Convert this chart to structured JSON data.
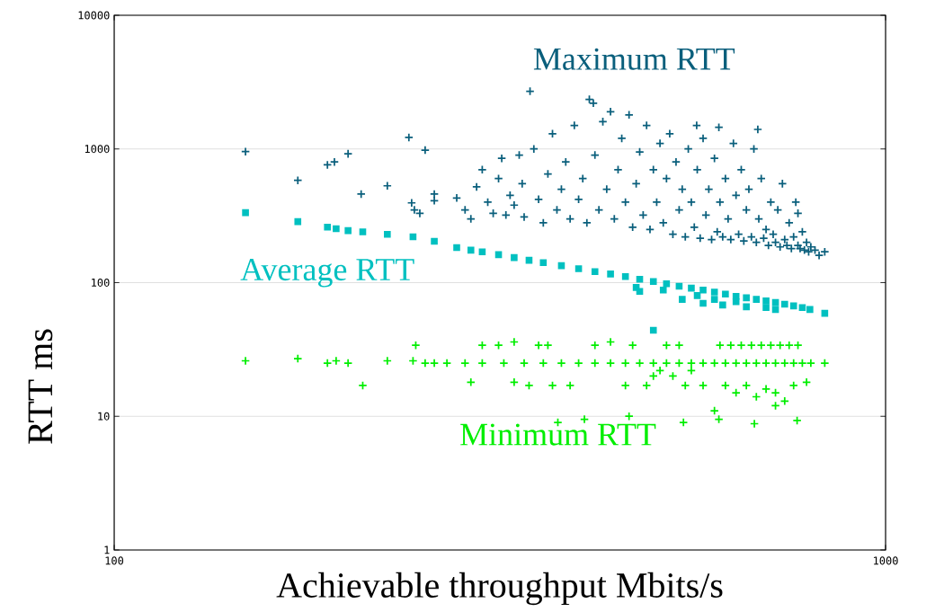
{
  "chart_data": {
    "type": "scatter",
    "xlabel": "Achievable throughput Mbits/s",
    "ylabel": "RTT ms",
    "log": "xy",
    "grid": "y",
    "xlim": [
      100,
      1000
    ],
    "ylim": [
      1,
      10000
    ],
    "xticks": [
      100,
      1000
    ],
    "yticks": [
      1,
      10,
      100,
      1000,
      10000
    ],
    "series": [
      {
        "name": "Maximum RTT",
        "color": "#0a5f7c",
        "marker": "cross",
        "x": [
          148,
          173,
          189,
          193,
          201,
          209,
          226,
          241,
          253,
          243,
          245,
          249,
          260,
          260,
          278,
          285,
          290,
          295,
          300,
          305,
          310,
          315,
          318,
          322,
          326,
          330,
          335,
          340,
          338,
          346,
          350,
          355,
          360,
          365,
          370,
          375,
          380,
          385,
          390,
          395,
          400,
          405,
          410,
          413,
          418,
          420,
          425,
          430,
          435,
          440,
          445,
          450,
          455,
          460,
          465,
          470,
          475,
          480,
          485,
          490,
          495,
          500,
          505,
          510,
          515,
          520,
          525,
          530,
          535,
          540,
          545,
          550,
          555,
          560,
          565,
          570,
          575,
          580,
          585,
          590,
          595,
          600,
          605,
          610,
          615,
          620,
          625,
          630,
          635,
          640,
          645,
          650,
          655,
          660,
          665,
          670,
          675,
          680,
          685,
          690,
          695,
          700,
          705,
          710,
          715,
          720,
          725,
          730,
          735,
          740,
          745,
          750,
          755,
          760,
          765,
          770,
          775,
          780,
          785,
          790,
          795,
          800,
          810,
          820,
          834,
          569,
          608,
          683,
          770
        ],
        "values": [
          955,
          582,
          760,
          800,
          920,
          460,
          530,
          1220,
          980,
          395,
          350,
          330,
          410,
          460,
          430,
          350,
          300,
          520,
          700,
          400,
          330,
          600,
          850,
          320,
          450,
          380,
          900,
          310,
          550,
          2700,
          1000,
          420,
          280,
          650,
          1300,
          350,
          500,
          800,
          300,
          1500,
          420,
          600,
          280,
          2350,
          2200,
          900,
          350,
          1600,
          500,
          1900,
          300,
          700,
          1200,
          400,
          1800,
          260,
          550,
          950,
          320,
          1500,
          250,
          700,
          400,
          1100,
          280,
          600,
          1300,
          230,
          800,
          350,
          500,
          220,
          1000,
          400,
          260,
          700,
          215,
          1200,
          320,
          500,
          210,
          850,
          240,
          400,
          220,
          600,
          300,
          210,
          1100,
          450,
          230,
          700,
          205,
          350,
          500,
          220,
          1000,
          200,
          300,
          600,
          215,
          250,
          190,
          400,
          230,
          200,
          350,
          185,
          550,
          210,
          190,
          280,
          180,
          220,
          400,
          190,
          180,
          240,
          175,
          200,
          170,
          185,
          175,
          160,
          170,
          1500,
          1450,
          1400,
          330
        ]
      },
      {
        "name": "Average RTT",
        "color": "#00c0c0",
        "marker": "square",
        "x": [
          148,
          173,
          189,
          194,
          201,
          210,
          226,
          244,
          260,
          278,
          290,
          300,
          315,
          330,
          345,
          360,
          380,
          400,
          420,
          440,
          460,
          480,
          500,
          520,
          540,
          560,
          580,
          600,
          620,
          640,
          660,
          680,
          700,
          720,
          740,
          760,
          780,
          798,
          475,
          480,
          515,
          545,
          570,
          580,
          600,
          615,
          640,
          660,
          700,
          720,
          500,
          834
        ],
        "values": [
          334,
          286,
          260,
          253,
          245,
          240,
          230,
          220,
          204,
          183,
          175,
          170,
          162,
          154,
          147,
          141,
          134,
          127,
          121,
          116,
          111,
          106,
          102,
          98,
          94,
          91,
          88,
          85,
          82,
          79,
          77,
          75,
          73,
          71,
          69,
          67,
          65,
          63,
          92,
          86,
          88,
          75,
          80,
          70,
          75,
          68,
          72,
          66,
          65,
          63,
          44,
          59
        ]
      },
      {
        "name": "Minimum RTT",
        "color": "#00ee00",
        "marker": "cross",
        "x": [
          148,
          173,
          189,
          194,
          201,
          210,
          226,
          244,
          246,
          253,
          260,
          270,
          285,
          300,
          320,
          340,
          360,
          380,
          400,
          420,
          440,
          460,
          480,
          500,
          520,
          540,
          560,
          580,
          600,
          620,
          640,
          660,
          680,
          700,
          720,
          740,
          760,
          780,
          800,
          834,
          300,
          315,
          330,
          355,
          365,
          420,
          440,
          470,
          520,
          540,
          610,
          630,
          650,
          670,
          690,
          710,
          730,
          750,
          770,
          290,
          330,
          345,
          370,
          390,
          460,
          490,
          550,
          580,
          620,
          640,
          660,
          680,
          700,
          720,
          740,
          760,
          790,
          500,
          510,
          530,
          560,
          376,
          407,
          465,
          547,
          608,
          676,
          768,
          600,
          720
        ],
        "values": [
          26,
          27,
          25,
          26,
          25,
          17,
          26,
          26,
          34,
          25,
          25,
          25,
          25,
          25,
          25,
          25,
          25,
          25,
          25,
          25,
          25,
          25,
          25,
          25,
          25,
          25,
          25,
          25,
          25,
          25,
          25,
          25,
          25,
          25,
          25,
          25,
          25,
          25,
          25,
          25,
          34,
          34,
          36,
          34,
          34,
          34,
          36,
          34,
          34,
          34,
          34,
          34,
          34,
          34,
          34,
          34,
          34,
          34,
          34,
          18,
          18,
          17,
          17,
          17,
          17,
          17,
          17,
          17,
          17,
          15,
          17,
          14,
          16,
          15,
          13,
          17,
          18,
          20,
          22,
          20,
          22,
          9,
          9.5,
          10,
          9,
          9.5,
          8.8,
          9.3,
          11,
          12
        ]
      }
    ]
  }
}
